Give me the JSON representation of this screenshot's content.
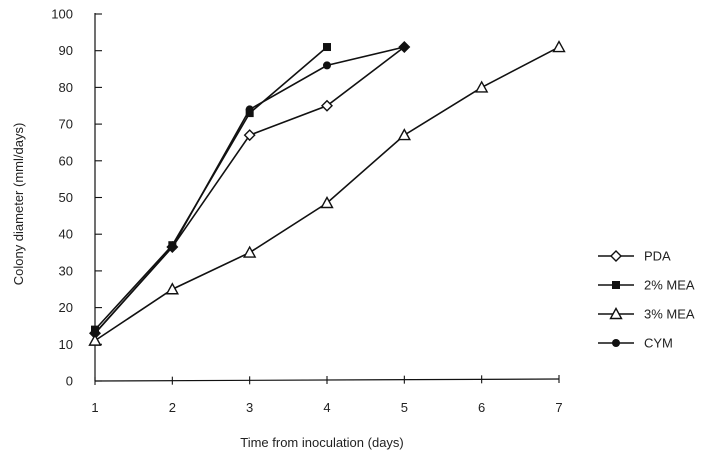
{
  "chart_data": {
    "type": "line",
    "title": "",
    "xlabel": "Time from inoculation (days)",
    "ylabel": "Colony diameter (mml/days)",
    "xlim": [
      1,
      7
    ],
    "ylim": [
      0,
      100
    ],
    "x_ticks": [
      1,
      2,
      3,
      4,
      5,
      6,
      7
    ],
    "y_ticks": [
      0,
      10,
      20,
      30,
      40,
      50,
      60,
      70,
      80,
      90,
      100
    ],
    "grid": false,
    "legend_position": "right",
    "series": [
      {
        "name": "PDA",
        "marker": "open-diamond",
        "points": [
          [
            1,
            13
          ],
          [
            2,
            36.5
          ],
          [
            3,
            67
          ],
          [
            4,
            75
          ],
          [
            5,
            91
          ]
        ]
      },
      {
        "name": "2% MEA",
        "marker": "filled-square",
        "points": [
          [
            1,
            14
          ],
          [
            2,
            37
          ],
          [
            3,
            73
          ],
          [
            4,
            91
          ]
        ]
      },
      {
        "name": "3% MEA",
        "marker": "open-triangle",
        "points": [
          [
            1,
            11
          ],
          [
            2,
            25
          ],
          [
            3,
            35
          ],
          [
            4,
            48.5
          ],
          [
            5,
            67
          ],
          [
            6,
            80
          ],
          [
            7,
            91
          ]
        ]
      },
      {
        "name": "CYM",
        "marker": "filled-circle",
        "points": [
          [
            1,
            13
          ],
          [
            2,
            36.5
          ],
          [
            3,
            74
          ],
          [
            4,
            86
          ],
          [
            5,
            91
          ]
        ]
      }
    ]
  }
}
